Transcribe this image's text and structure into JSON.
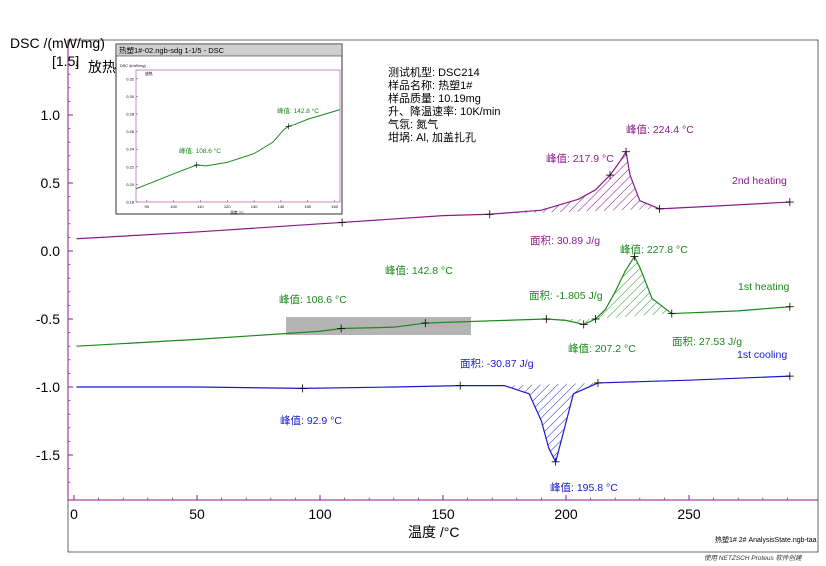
{
  "y_axis": {
    "title": "DSC /(mW/mg)",
    "top_label": "[1.5]",
    "exo_label": "放热",
    "ticks": [
      "1.0",
      "0.5",
      "0.0",
      "-0.5",
      "-1.0",
      "-1.5"
    ]
  },
  "x_axis": {
    "title": "温度 /°C",
    "ticks": [
      "0",
      "50",
      "100",
      "150",
      "200",
      "250"
    ]
  },
  "info": [
    "测试机型:   DSC214",
    "样品名称:   热塑1#",
    "样品质量:   10.19mg",
    "升、降温速率:   10K/min",
    "气氛:   氮气",
    "坩埚:   Al, 加盖扎孔"
  ],
  "footer": {
    "file": "热塑1# 2# AnalysisState.ngb-taa",
    "credit": "使用 NETZSCH Proteus 软件创建"
  },
  "inset": {
    "title": "热塑1#-02.ngb-sdg 1-1/5 - DSC",
    "ylabel": "DSC /(mW/mg)",
    "exo_label": "放热",
    "xlabel": "温度 /°C",
    "yticks": [
      "0.32",
      "0.30",
      "0.28",
      "0.26",
      "0.24",
      "0.22",
      "0.20",
      "0.18"
    ],
    "xticks": [
      "90",
      "100",
      "110",
      "120",
      "130",
      "140",
      "150",
      "160"
    ],
    "peak_labels": [
      "峰值: 108.6 °C",
      "峰值: 142.8 °C"
    ]
  },
  "colors": {
    "second_heating": "#8b1a8b",
    "first_heating": "#1a8a1a",
    "first_cooling": "#1a1acd",
    "axis": "#8b1a8b"
  },
  "chart_data": [
    {
      "type": "line",
      "xlim": [
        -3,
        292
      ],
      "ylim": [
        -1.75,
        1.45
      ],
      "xlabel": "温度 /°C",
      "ylabel": "DSC /(mW/mg)",
      "series": [
        {
          "name": "2nd heating",
          "color": "#8b1a8b",
          "x": [
            1,
            50,
            100,
            109,
            150,
            169,
            190,
            205,
            212,
            218,
            222,
            224.4,
            226,
            230,
            238,
            260,
            291
          ],
          "y": [
            0.09,
            0.14,
            0.2,
            0.21,
            0.26,
            0.27,
            0.3,
            0.38,
            0.45,
            0.56,
            0.66,
            0.73,
            0.56,
            0.37,
            0.31,
            0.33,
            0.36
          ],
          "labels": [
            {
              "text": "峰值: 217.9 °C"
            },
            {
              "text": "峰值: 224.4 °C"
            },
            {
              "text": "面积: 30.89 J/g"
            },
            {
              "text": "2nd heating"
            }
          ]
        },
        {
          "name": "1st heating",
          "color": "#1a8a1a",
          "x": [
            1,
            50,
            100,
            108.6,
            130,
            142.8,
            175,
            192,
            200,
            207.2,
            212,
            216,
            220,
            224,
            227.8,
            230,
            235,
            243,
            270,
            291
          ],
          "y": [
            -0.7,
            -0.65,
            -0.59,
            -0.57,
            -0.56,
            -0.53,
            -0.51,
            -0.5,
            -0.51,
            -0.54,
            -0.5,
            -0.43,
            -0.3,
            -0.15,
            -0.04,
            -0.12,
            -0.35,
            -0.46,
            -0.44,
            -0.41
          ],
          "labels": [
            {
              "text": "峰值: 108.6 °C"
            },
            {
              "text": "峰值: 142.8 °C"
            },
            {
              "text": "面积: -1.805 J/g"
            },
            {
              "text": "峰值: 207.2 °C"
            },
            {
              "text": "峰值: 227.8 °C"
            },
            {
              "text": "面积: 27.53 J/g"
            },
            {
              "text": "1st heating"
            }
          ]
        },
        {
          "name": "1st cooling",
          "color": "#1a1acd",
          "x": [
            1,
            50,
            92.9,
            130,
            157,
            175,
            185,
            190,
            193,
            195.8,
            198,
            203,
            213,
            250,
            291
          ],
          "y": [
            -1.0,
            -1.0,
            -1.01,
            -1.0,
            -0.99,
            -0.99,
            -1.05,
            -1.25,
            -1.45,
            -1.55,
            -1.4,
            -1.05,
            -0.97,
            -0.95,
            -0.92
          ],
          "labels": [
            {
              "text": "峰值: 92.9 °C"
            },
            {
              "text": "面积: -30.87 J/g"
            },
            {
              "text": "峰值: 195.8 °C"
            },
            {
              "text": "1st cooling"
            }
          ]
        }
      ]
    },
    {
      "type": "line",
      "xlim": [
        86,
        162
      ],
      "ylim": [
        0.18,
        0.33
      ],
      "series": [
        {
          "name": "1st heating",
          "color": "#1a8a1a",
          "x": [
            86,
            100,
            108.6,
            112,
            120,
            130,
            137,
            141,
            142.8,
            145,
            150,
            162
          ],
          "y": [
            0.195,
            0.212,
            0.222,
            0.221,
            0.225,
            0.235,
            0.248,
            0.262,
            0.266,
            0.268,
            0.274,
            0.285
          ]
        }
      ]
    }
  ]
}
